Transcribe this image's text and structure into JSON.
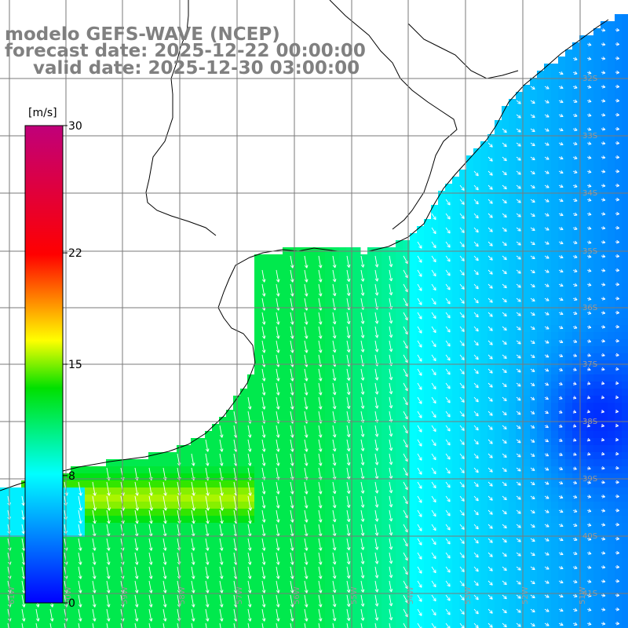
{
  "title": {
    "line1": "modelo GEFS-WAVE (NCEP)",
    "line2": "forecast date: 2025-12-22 00:00:00",
    "line3": "valid date: 2025-12-30 03:00:00"
  },
  "colorbar": {
    "unit": "[m/s]",
    "min": 0,
    "max": 30,
    "ticks": [
      {
        "value": 30,
        "label": "30"
      },
      {
        "value": 22,
        "label": "22"
      },
      {
        "value": 15,
        "label": "15"
      },
      {
        "value": 8,
        "label": "8"
      },
      {
        "value": 0,
        "label": "0"
      }
    ]
  },
  "lat_labels": [
    "32S",
    "33S",
    "34S",
    "35S",
    "36S",
    "37S",
    "38S",
    "39S",
    "40S",
    "41S"
  ],
  "lon_labels": [
    "61W",
    "60W",
    "59W",
    "58W",
    "57W",
    "56W",
    "55W",
    "54W",
    "53W",
    "52W",
    "51W"
  ],
  "colors": {
    "land": "#ffffff",
    "coast": "#000000",
    "grid": "#7a7a7a",
    "vectors": "#ffffff",
    "title": "#808080"
  }
}
